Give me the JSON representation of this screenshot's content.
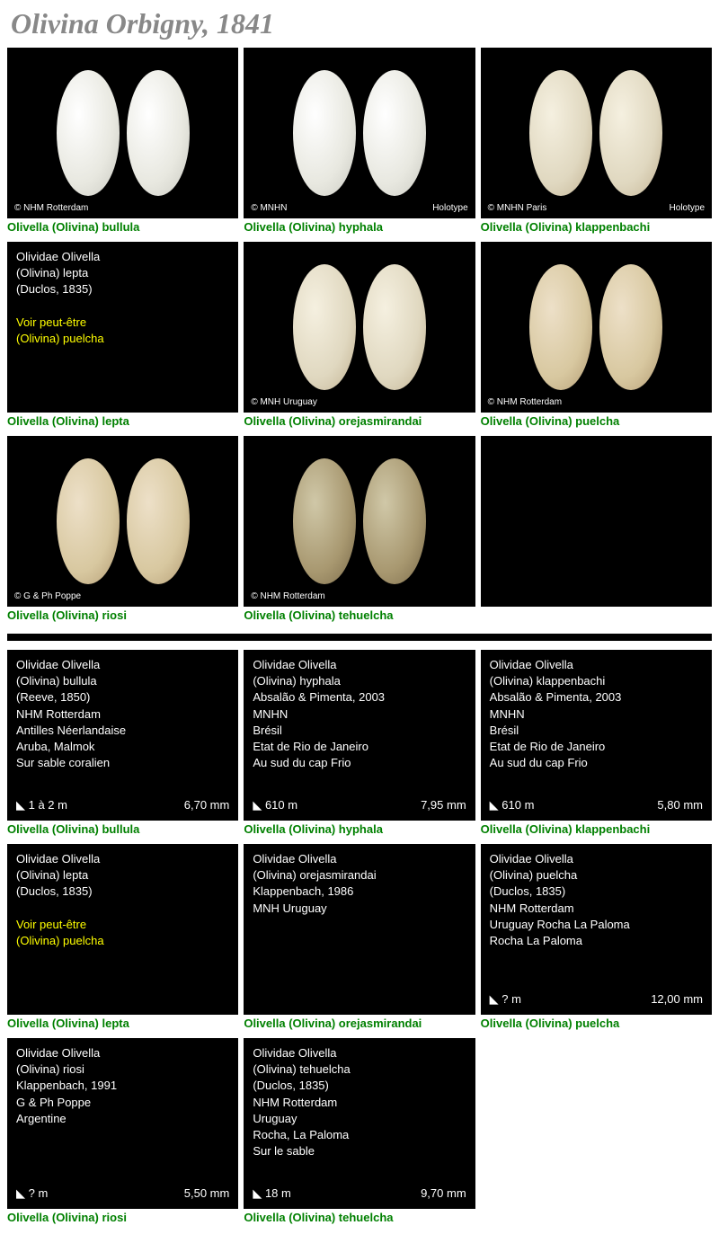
{
  "title": "Olivina Orbigny, 1841",
  "topGrid": [
    {
      "type": "image",
      "shellClass": "shell-white",
      "credit": "© NHM Rotterdam",
      "holotype": "",
      "caption": "Olivella (Olivina) bullula"
    },
    {
      "type": "image",
      "shellClass": "shell-white",
      "credit": "© MNHN",
      "holotype": "Holotype",
      "caption": "Olivella (Olivina) hyphala"
    },
    {
      "type": "image",
      "shellClass": "shell-cream",
      "credit": "© MNHN Paris",
      "holotype": "Holotype",
      "caption": "Olivella (Olivina) klappenbachi"
    },
    {
      "type": "info",
      "lines": [
        "Olividae Olivella",
        "(Olivina) lepta",
        "(Duclos, 1835)",
        "",
        "<span class='highlight'>Voir peut-être</span>",
        "<span class='highlight'>(Olivina) puelcha</span>"
      ],
      "caption": "Olivella (Olivina) lepta"
    },
    {
      "type": "image",
      "shellClass": "shell-cream",
      "credit": "© MNH Uruguay",
      "holotype": "",
      "caption": "Olivella (Olivina) orejasmirandai"
    },
    {
      "type": "image",
      "shellClass": "shell-tan",
      "credit": "© NHM Rotterdam",
      "holotype": "",
      "caption": "Olivella (Olivina) puelcha"
    },
    {
      "type": "image",
      "shellClass": "shell-tan",
      "credit": "© G & Ph Poppe",
      "holotype": "",
      "caption": "Olivella (Olivina) riosi"
    },
    {
      "type": "image",
      "shellClass": "shell-olive",
      "credit": "© NHM Rotterdam",
      "holotype": "",
      "caption": "Olivella (Olivina) tehuelcha"
    },
    {
      "type": "empty",
      "caption": ""
    }
  ],
  "bottomGrid": [
    {
      "lines": [
        "Olividae Olivella",
        "(Olivina) bullula",
        "(Reeve, 1850)",
        "NHM Rotterdam",
        "Antilles Néerlandaise",
        "Aruba, Malmok",
        "Sur sable coralien"
      ],
      "depth": "1 à 2 m",
      "size": "6,70 mm",
      "caption": "Olivella (Olivina) bullula"
    },
    {
      "lines": [
        "Olividae Olivella",
        "(Olivina) hyphala",
        "Absalão & Pimenta, 2003",
        "MNHN",
        "Brésil",
        "Etat de Rio de Janeiro",
        "Au sud du cap Frio"
      ],
      "depth": "610 m",
      "size": "7,95 mm",
      "caption": "Olivella (Olivina) hyphala"
    },
    {
      "lines": [
        "Olividae Olivella",
        "(Olivina) klappenbachi",
        "Absalão & Pimenta, 2003",
        "MNHN",
        "Brésil",
        "Etat de Rio de Janeiro",
        "Au sud du cap Frio"
      ],
      "depth": "610 m",
      "size": "5,80 mm",
      "caption": "Olivella (Olivina) klappenbachi"
    },
    {
      "lines": [
        "Olividae Olivella",
        "(Olivina) lepta",
        "(Duclos, 1835)",
        "",
        "<span class='highlight'>Voir peut-être</span>",
        "<span class='highlight'>(Olivina) puelcha</span>"
      ],
      "depth": "",
      "size": "",
      "caption": "Olivella (Olivina) lepta"
    },
    {
      "lines": [
        "Olividae Olivella",
        "(Olivina) orejasmirandai",
        "Klappenbach, 1986",
        "MNH Uruguay"
      ],
      "depth": "",
      "size": "",
      "caption": "Olivella (Olivina) orejasmirandai"
    },
    {
      "lines": [
        "Olividae Olivella",
        "(Olivina) puelcha",
        "(Duclos, 1835)",
        "NHM Rotterdam",
        "Uruguay Rocha La Paloma",
        "Rocha La Paloma"
      ],
      "depth": "? m",
      "size": "12,00 mm",
      "caption": "Olivella (Olivina) puelcha"
    },
    {
      "lines": [
        "Olividae Olivella",
        "(Olivina) riosi",
        "Klappenbach, 1991",
        "G & Ph Poppe",
        "Argentine"
      ],
      "depth": "? m",
      "size": "5,50 mm",
      "caption": "Olivella (Olivina) riosi"
    },
    {
      "lines": [
        "Olividae Olivella",
        "(Olivina) tehuelcha",
        "(Duclos, 1835)",
        "NHM Rotterdam",
        "Uruguay",
        "Rocha, La Paloma",
        "Sur le sable"
      ],
      "depth": "18 m",
      "size": "9,70 mm",
      "caption": "Olivella (Olivina) tehuelcha"
    }
  ]
}
